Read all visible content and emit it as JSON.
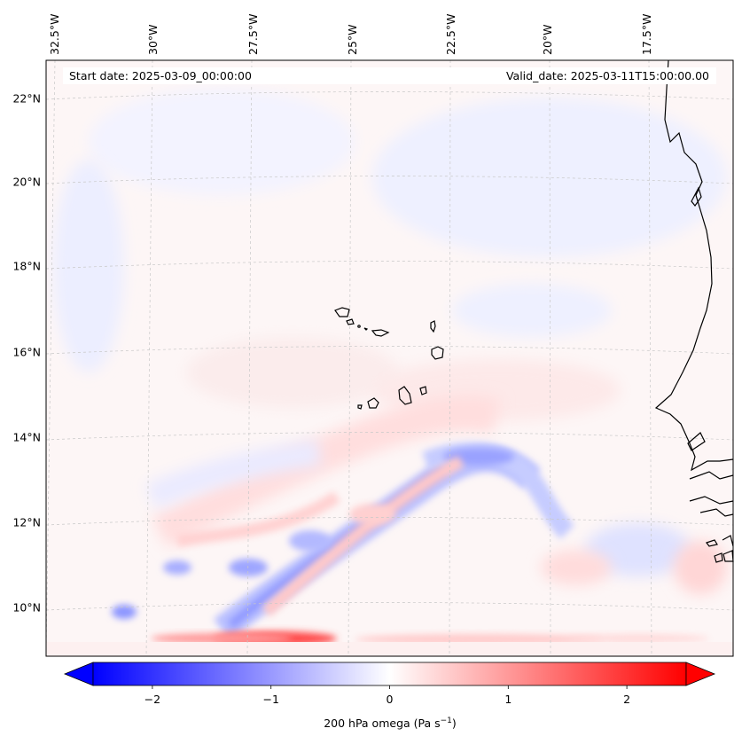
{
  "map": {
    "start_label": "Start date: 2025-03-09_00:00:00",
    "valid_label": "Valid_date: 2025-03-11T15:00:00.00",
    "lon_labels": [
      "32.5°W",
      "30°W",
      "27.5°W",
      "25°W",
      "22.5°W",
      "20°W",
      "17.5°W"
    ],
    "lat_labels": [
      "22°N",
      "20°N",
      "18°N",
      "16°N",
      "14°N",
      "12°N",
      "10°N"
    ],
    "features": [
      "Cabo Verde islands",
      "West African coastline"
    ]
  },
  "colorbar": {
    "ticks": [
      "−2",
      "−1",
      "0",
      "1",
      "2"
    ],
    "tick_values": [
      -2,
      -1,
      0,
      1,
      2
    ],
    "range": [
      -2.5,
      2.5
    ],
    "label_prefix": "200 hPa omega (Pa s",
    "label_exp": "−1",
    "label_suffix": ")",
    "colors": {
      "low": "#0000ff",
      "mid": "#ffffff",
      "high": "#ff0000"
    }
  },
  "chart_data": {
    "type": "heatmap",
    "variable": "200 hPa omega",
    "units": "Pa s^-1",
    "vmin": -2.5,
    "vmax": 2.5,
    "lon_range_deg": [
      -32.5,
      -17.5
    ],
    "lat_range_deg": [
      10,
      22
    ],
    "xlabel": "",
    "ylabel": "",
    "title": ""
  }
}
